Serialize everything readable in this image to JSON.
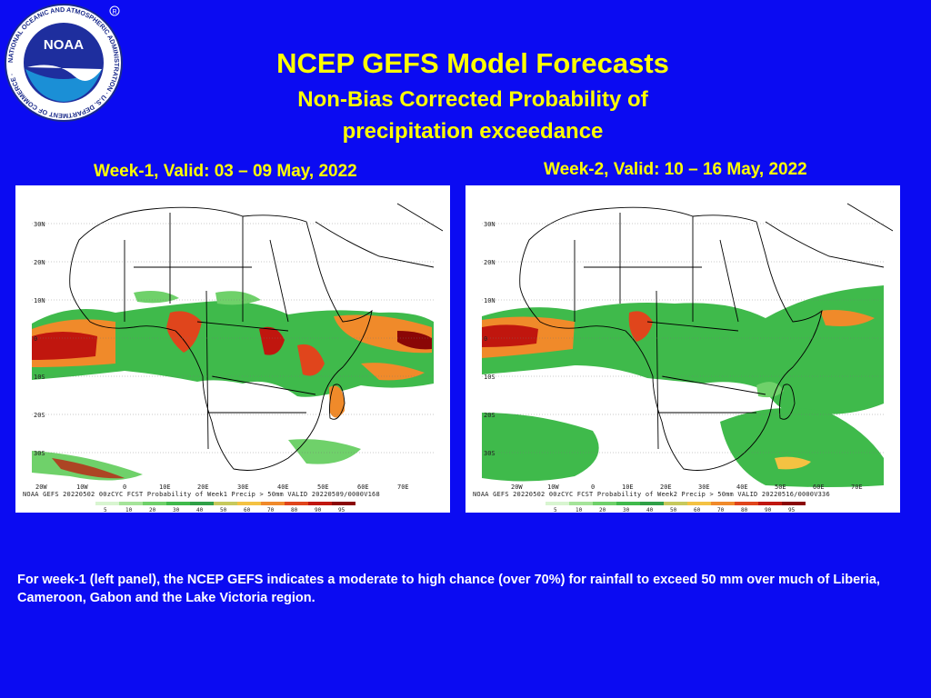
{
  "header": {
    "title": "NCEP GEFS Model Forecasts",
    "subtitle_line1": "Non-Bias Corrected Probability of",
    "subtitle_line2": "precipitation exceedance"
  },
  "logo": {
    "text": "NOAA",
    "ring_text": "NATIONAL OCEANIC AND ATMOSPHERIC ADMINISTRATION · U.S. DEPARTMENT OF COMMERCE ·",
    "icon": "noaa-logo"
  },
  "panels": [
    {
      "label": "Week-1, Valid: 03 – 09 May, 2022",
      "footer": "NOAA GEFS 20220502 00zCYC FCST Probability of Week1 Precip > 50mm   VALID 20220509/0000V168",
      "lat_labels": [
        "30N",
        "20N",
        "10N",
        "0",
        "10S",
        "20S",
        "30S"
      ],
      "lon_labels": [
        "20W",
        "10W",
        "0",
        "10E",
        "20E",
        "30E",
        "40E",
        "50E",
        "60E",
        "70E"
      ],
      "colorbar_labels": [
        "5",
        "10",
        "20",
        "30",
        "40",
        "50",
        "60",
        "70",
        "80",
        "90",
        "95"
      ]
    },
    {
      "label": "Week-2, Valid: 10 – 16 May, 2022",
      "footer": "NOAA GEFS 20220502 00zCYC FCST Probability of Week2 Precip > 50mm   VALID 20220516/0000V336",
      "lat_labels": [
        "30N",
        "20N",
        "10N",
        "0",
        "10S",
        "20S",
        "30S"
      ],
      "lon_labels": [
        "20W",
        "10W",
        "0",
        "10E",
        "20E",
        "30E",
        "40E",
        "50E",
        "60E",
        "70E"
      ],
      "colorbar_labels": [
        "5",
        "10",
        "20",
        "30",
        "40",
        "50",
        "60",
        "70",
        "80",
        "90",
        "95"
      ]
    }
  ],
  "colors": {
    "background": "#0b0bf2",
    "title": "#ffff00",
    "caption": "#ffffff",
    "colorbar": [
      "#d8f5d0",
      "#a5e49a",
      "#6fd16a",
      "#3fba4b",
      "#2fa046",
      "#c7c95c",
      "#f4c242",
      "#f08a2a",
      "#e0451c",
      "#c0160e",
      "#8a0606"
    ]
  },
  "caption": "For week-1 (left panel), the NCEP GEFS indicates a moderate to high chance (over 70%) for rainfall to exceed 50 mm over much of Liberia, Cameroon, Gabon and the Lake Victoria region."
}
